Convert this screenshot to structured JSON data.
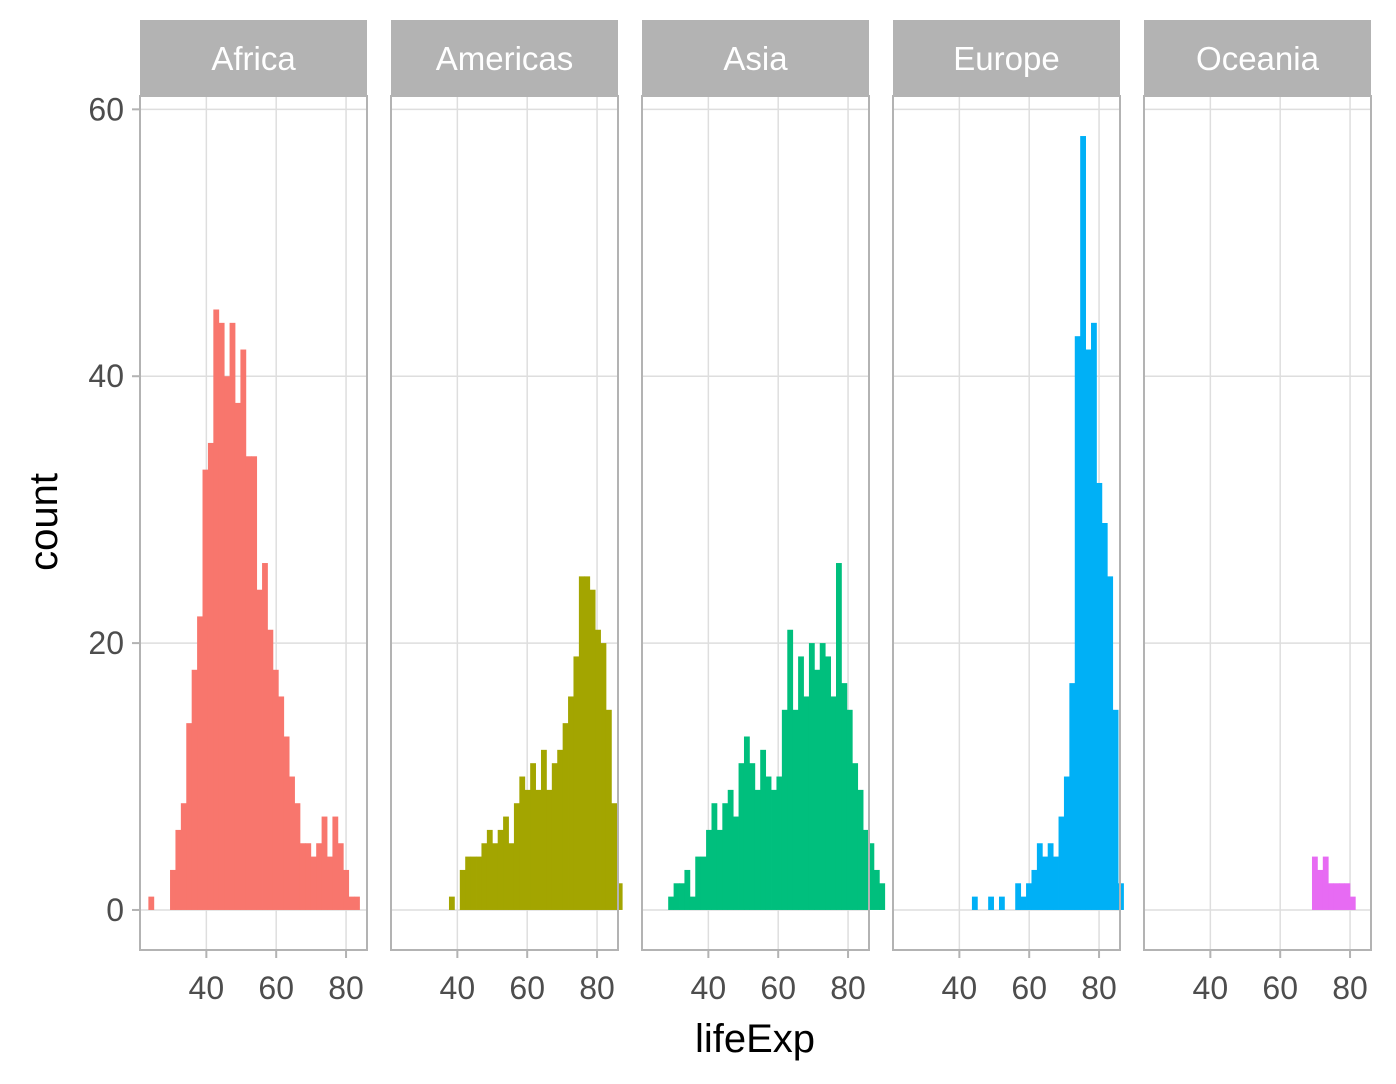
{
  "chart_data": {
    "type": "histogram",
    "facet_by": "continent",
    "xlabel": "lifeExp",
    "ylabel": "count",
    "xlim": [
      21,
      86
    ],
    "ylim": [
      -3,
      61
    ],
    "x_ticks": [
      40,
      60,
      80
    ],
    "y_ticks": [
      0,
      20,
      40,
      60
    ],
    "bin_width": 1.55,
    "grid": true,
    "legend": "none",
    "panels": [
      {
        "name": "Africa",
        "color": "#F8766D",
        "bin_start": 23.4,
        "counts": [
          1,
          0,
          0,
          0,
          3,
          6,
          8,
          14,
          18,
          22,
          33,
          35,
          45,
          44,
          40,
          44,
          38,
          42,
          34,
          34,
          24,
          26,
          21,
          18,
          16,
          13,
          10,
          8,
          5,
          5,
          4,
          5,
          7,
          4,
          7,
          5,
          3,
          1,
          1
        ]
      },
      {
        "name": "Americas",
        "color": "#A3A500",
        "bin_start": 37.6,
        "counts": [
          1,
          0,
          3,
          4,
          4,
          4,
          5,
          6,
          5,
          6,
          7,
          5,
          8,
          10,
          9,
          11,
          9,
          12,
          9,
          11,
          12,
          14,
          16,
          19,
          25,
          25,
          24,
          21,
          20,
          15,
          8,
          2
        ]
      },
      {
        "name": "Asia",
        "color": "#00BF7D",
        "bin_start": 28.5,
        "counts": [
          1,
          2,
          2,
          3,
          1,
          4,
          4,
          6,
          8,
          6,
          8,
          9,
          7,
          11,
          13,
          11,
          9,
          12,
          10,
          9,
          10,
          15,
          21,
          15,
          19,
          16,
          20,
          18,
          20,
          19,
          16,
          26,
          17,
          15,
          11,
          9,
          6,
          5,
          3,
          2
        ]
      },
      {
        "name": "Europe",
        "color": "#00B0F6",
        "bin_start": 43.6,
        "counts": [
          1,
          0,
          0,
          1,
          0,
          1,
          0,
          0,
          2,
          1,
          2,
          3,
          5,
          4,
          5,
          4,
          7,
          10,
          17,
          43,
          58,
          42,
          44,
          32,
          29,
          25,
          15,
          2
        ]
      },
      {
        "name": "Oceania",
        "color": "#E76BF3",
        "bin_start": 69.1,
        "counts": [
          4,
          3,
          4,
          2,
          2,
          2,
          2,
          1
        ]
      }
    ]
  }
}
